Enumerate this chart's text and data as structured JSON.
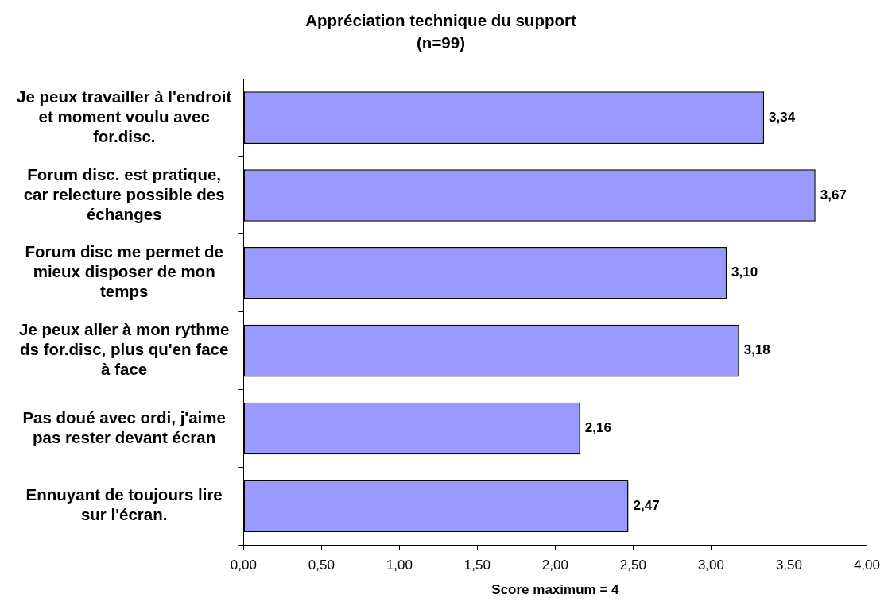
{
  "chart_data": {
    "type": "bar",
    "orientation": "horizontal",
    "title": "Appréciation technique du support",
    "subtitle": "(n=99)",
    "xlabel": "Score maximum = 4",
    "categories": [
      "Je peux travailler à l'endroit et moment voulu avec for.disc.",
      "Forum disc. est pratique, car relecture possible des échanges",
      "Forum disc me permet de mieux disposer de mon temps",
      "Je peux aller à mon rythme ds for.disc, plus qu'en face à face",
      "Pas doué avec ordi, j'aime pas rester devant écran",
      "Ennuyant de toujours lire sur l'écran."
    ],
    "values": [
      3.34,
      3.67,
      3.1,
      3.18,
      2.16,
      2.47
    ],
    "color": "#9999ff",
    "value_labels": [
      "3,34",
      "3,67",
      "3,10",
      "3,18",
      "2,16",
      "2,47"
    ],
    "xlim": [
      0,
      4
    ],
    "xticks": [
      {
        "value": 0,
        "label": "0,00"
      },
      {
        "value": 0.5,
        "label": "0,50"
      },
      {
        "value": 1,
        "label": "1,00"
      },
      {
        "value": 1.5,
        "label": "1,50"
      },
      {
        "value": 2,
        "label": "2,00"
      },
      {
        "value": 2.5,
        "label": "2,50"
      },
      {
        "value": 3,
        "label": "3,00"
      },
      {
        "value": 3.5,
        "label": "3,50"
      },
      {
        "value": 4,
        "label": "4,00"
      }
    ],
    "grid": false,
    "legend": false
  }
}
